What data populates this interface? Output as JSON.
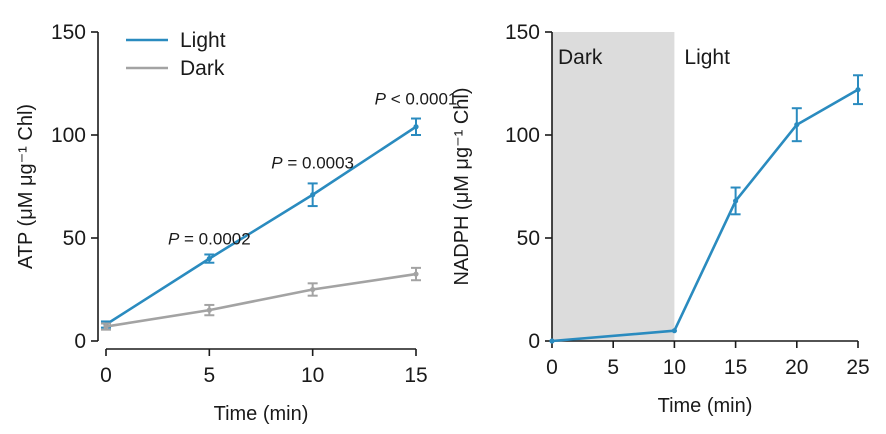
{
  "colors": {
    "light": "#2a8bbf",
    "dark": "#a3a3a3",
    "shade": "#dcdcdc",
    "axis": "#1a1a1a"
  },
  "chart_data": [
    {
      "type": "line",
      "title": "",
      "xlabel": "Time (min)",
      "ylabel": "ATP (μM μg⁻¹ Chl)",
      "xlim": [
        0,
        15
      ],
      "ylim": [
        0,
        150
      ],
      "xticks": [
        0,
        5,
        10,
        15
      ],
      "yticks": [
        0,
        50,
        100,
        150
      ],
      "grid": false,
      "legend_position": "top-left",
      "x": [
        0,
        5,
        10,
        15
      ],
      "series": [
        {
          "name": "Light",
          "color_key": "light",
          "values": [
            8,
            40,
            71,
            104
          ],
          "errors": [
            1.5,
            2,
            5.5,
            4
          ]
        },
        {
          "name": "Dark",
          "color_key": "dark",
          "values": [
            7,
            15,
            25,
            32.5
          ],
          "errors": [
            1.5,
            2.5,
            3,
            3
          ]
        }
      ],
      "annotations": [
        {
          "x": 5,
          "y": 40,
          "prefix": "P",
          "text": " = 0.0002"
        },
        {
          "x": 10,
          "y": 77,
          "prefix": "P",
          "text": " = 0.0003"
        },
        {
          "x": 15,
          "y": 108,
          "prefix": "P",
          "text": " < 0.0001"
        }
      ]
    },
    {
      "type": "line",
      "title": "",
      "xlabel": "Time (min)",
      "ylabel": "NADPH (μM μg⁻¹ Chl)",
      "xlim": [
        0,
        25
      ],
      "ylim": [
        0,
        150
      ],
      "xticks": [
        0,
        5,
        10,
        15,
        20,
        25
      ],
      "yticks": [
        0,
        50,
        100,
        150
      ],
      "grid": false,
      "shaded_region": {
        "x_from": 0,
        "x_to": 10,
        "label": "Dark"
      },
      "region_label_after": "Light",
      "x": [
        0,
        10,
        15,
        20,
        25
      ],
      "series": [
        {
          "name": "",
          "color_key": "light",
          "values": [
            0,
            5,
            68,
            105,
            122
          ],
          "errors": [
            0,
            0,
            6.5,
            8,
            7
          ]
        }
      ]
    }
  ]
}
